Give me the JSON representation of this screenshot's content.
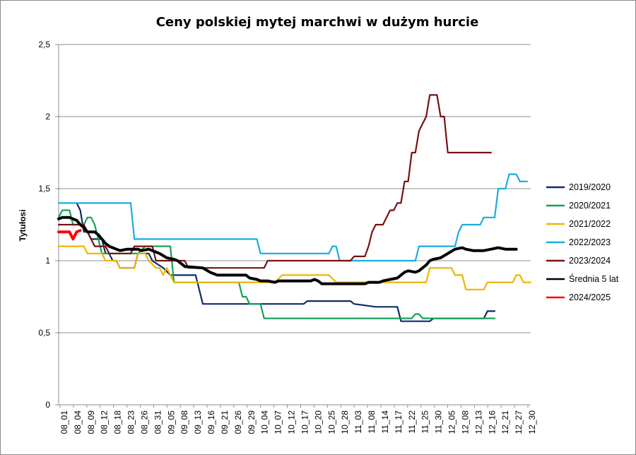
{
  "chart_data": {
    "type": "line",
    "title": "Ceny polskiej  mytej marchwi  w dużym hurcie",
    "ylabel": "Tytułosi",
    "xlabel": "",
    "ylim": [
      0,
      2.5
    ],
    "yticks": [
      0,
      0.5,
      1,
      1.5,
      2,
      2.5
    ],
    "ytick_labels": [
      "0",
      "0,5",
      "1",
      "1,5",
      "2",
      "2,5"
    ],
    "grid": "horizontal",
    "legend_position": "right",
    "x_tick_labels": [
      "08_01",
      "08_04",
      "08_09",
      "08_12",
      "08_18",
      "08_23",
      "08_26",
      "08_31",
      "09_05",
      "09_08",
      "09_13",
      "09_16",
      "09_21",
      "09_26",
      "09_29",
      "10_04",
      "10_07",
      "10_12",
      "10_17",
      "10_20",
      "10_25",
      "10_28",
      "11_03",
      "11_08",
      "11_14",
      "11_17",
      "11_22",
      "11_25",
      "11_30",
      "12_05",
      "12_08",
      "12_13",
      "12_16",
      "12_21",
      "12_27",
      "12_30"
    ],
    "x_count": 110,
    "series": [
      {
        "name": "2019/2020",
        "color": "#0d2d6b",
        "width": 2.2,
        "points": [
          [
            5,
            1.4
          ],
          [
            6,
            1.35
          ],
          [
            7,
            1.2
          ],
          [
            8,
            1.2
          ],
          [
            9,
            1.15
          ],
          [
            12,
            1.15
          ],
          [
            13,
            1.05
          ],
          [
            14,
            1.05
          ],
          [
            15,
            1.0
          ],
          [
            16,
            1.0
          ],
          [
            17,
            0.95
          ],
          [
            21,
            0.95
          ],
          [
            22,
            1.05
          ],
          [
            25,
            1.05
          ],
          [
            26,
            1.0
          ],
          [
            29,
            0.95
          ],
          [
            31,
            0.9
          ],
          [
            38,
            0.9
          ],
          [
            40,
            0.7
          ],
          [
            68,
            0.7
          ],
          [
            69,
            0.72
          ],
          [
            81,
            0.72
          ],
          [
            82,
            0.7
          ],
          [
            88,
            0.68
          ],
          [
            94,
            0.68
          ],
          [
            95,
            0.58
          ],
          [
            103,
            0.58
          ],
          [
            104,
            0.6
          ],
          [
            118,
            0.6
          ],
          [
            119,
            0.65
          ],
          [
            121,
            0.65
          ]
        ]
      },
      {
        "name": "2020/2021",
        "color": "#17a05a",
        "width": 2.2,
        "points": [
          [
            0,
            1.3
          ],
          [
            1,
            1.35
          ],
          [
            3,
            1.35
          ],
          [
            4,
            1.25
          ],
          [
            7,
            1.25
          ],
          [
            8,
            1.3
          ],
          [
            9,
            1.3
          ],
          [
            10,
            1.25
          ],
          [
            12,
            1.05
          ],
          [
            13,
            1.05
          ],
          [
            14,
            1.05
          ],
          [
            15,
            1.05
          ],
          [
            16,
            1.05
          ],
          [
            17,
            1.05
          ],
          [
            18,
            1.05
          ],
          [
            22,
            1.05
          ],
          [
            24,
            1.1
          ],
          [
            31,
            1.1
          ],
          [
            32,
            0.85
          ],
          [
            46,
            0.85
          ],
          [
            50,
            0.85
          ],
          [
            51,
            0.75
          ],
          [
            52,
            0.75
          ],
          [
            53,
            0.7
          ],
          [
            56,
            0.7
          ],
          [
            57,
            0.6
          ],
          [
            78,
            0.6
          ],
          [
            79,
            0.6
          ],
          [
            98,
            0.6
          ],
          [
            99,
            0.63
          ],
          [
            100,
            0.63
          ],
          [
            101,
            0.6
          ],
          [
            121,
            0.6
          ]
        ]
      },
      {
        "name": "2021/2022",
        "color": "#f0b400",
        "width": 2.2,
        "points": [
          [
            0,
            1.1
          ],
          [
            7,
            1.1
          ],
          [
            8,
            1.05
          ],
          [
            12,
            1.05
          ],
          [
            13,
            1.0
          ],
          [
            16,
            1.0
          ],
          [
            17,
            0.95
          ],
          [
            21,
            0.95
          ],
          [
            22,
            1.05
          ],
          [
            24,
            1.05
          ],
          [
            25,
            1.0
          ],
          [
            27,
            0.95
          ],
          [
            28,
            0.95
          ],
          [
            29,
            0.9
          ],
          [
            30,
            0.95
          ],
          [
            31,
            0.9
          ],
          [
            32,
            0.85
          ],
          [
            49,
            0.85
          ],
          [
            52,
            0.85
          ],
          [
            60,
            0.85
          ],
          [
            62,
            0.9
          ],
          [
            75,
            0.9
          ],
          [
            77,
            0.85
          ],
          [
            102,
            0.85
          ],
          [
            103,
            0.95
          ],
          [
            109,
            0.95
          ],
          [
            110,
            0.9
          ],
          [
            112,
            0.9
          ],
          [
            113,
            0.8
          ],
          [
            118,
            0.8
          ],
          [
            119,
            0.85
          ],
          [
            126,
            0.85
          ],
          [
            127,
            0.9
          ],
          [
            128,
            0.9
          ],
          [
            129,
            0.85
          ],
          [
            131,
            0.85
          ]
        ]
      },
      {
        "name": "2022/2023",
        "color": "#1aace0",
        "width": 2.2,
        "points": [
          [
            0,
            1.4
          ],
          [
            20,
            1.4
          ],
          [
            21,
            1.15
          ],
          [
            50,
            1.15
          ],
          [
            55,
            1.15
          ],
          [
            56,
            1.05
          ],
          [
            75,
            1.05
          ],
          [
            76,
            1.1
          ],
          [
            77,
            1.1
          ],
          [
            78,
            1.0
          ],
          [
            99,
            1.0
          ],
          [
            100,
            1.1
          ],
          [
            110,
            1.1
          ],
          [
            111,
            1.2
          ],
          [
            112,
            1.25
          ],
          [
            117,
            1.25
          ],
          [
            118,
            1.3
          ],
          [
            121,
            1.3
          ],
          [
            122,
            1.5
          ],
          [
            124,
            1.5
          ],
          [
            125,
            1.6
          ],
          [
            127,
            1.6
          ],
          [
            128,
            1.55
          ],
          [
            130,
            1.55
          ]
        ]
      },
      {
        "name": "2023/2024",
        "color": "#7a1010",
        "width": 2.2,
        "points": [
          [
            0,
            1.25
          ],
          [
            7,
            1.25
          ],
          [
            8,
            1.2
          ],
          [
            9,
            1.15
          ],
          [
            10,
            1.1
          ],
          [
            13,
            1.1
          ],
          [
            14,
            1.05
          ],
          [
            15,
            1.05
          ],
          [
            16,
            1.05
          ],
          [
            17,
            1.05
          ],
          [
            20,
            1.05
          ],
          [
            21,
            1.1
          ],
          [
            26,
            1.1
          ],
          [
            27,
            1.0
          ],
          [
            35,
            1.0
          ],
          [
            36,
            0.95
          ],
          [
            50,
            0.95
          ],
          [
            57,
            0.95
          ],
          [
            58,
            1.0
          ],
          [
            81,
            1.0
          ],
          [
            82,
            1.03
          ],
          [
            85,
            1.03
          ],
          [
            86,
            1.1
          ],
          [
            87,
            1.2
          ],
          [
            88,
            1.25
          ],
          [
            90,
            1.25
          ],
          [
            91,
            1.3
          ],
          [
            92,
            1.35
          ],
          [
            93,
            1.35
          ],
          [
            94,
            1.4
          ],
          [
            95,
            1.4
          ],
          [
            96,
            1.55
          ],
          [
            97,
            1.55
          ],
          [
            98,
            1.75
          ],
          [
            99,
            1.75
          ],
          [
            100,
            1.9
          ],
          [
            102,
            2.0
          ],
          [
            103,
            2.15
          ],
          [
            105,
            2.15
          ],
          [
            106,
            2.0
          ],
          [
            107,
            2.0
          ],
          [
            108,
            1.75
          ],
          [
            118,
            1.75
          ],
          [
            120,
            1.75
          ]
        ]
      },
      {
        "name": "Średnia 5 lat",
        "color": "#000000",
        "width": 4,
        "points": [
          [
            0,
            1.29
          ],
          [
            1,
            1.3
          ],
          [
            3,
            1.3
          ],
          [
            5,
            1.28
          ],
          [
            6,
            1.25
          ],
          [
            7,
            1.23
          ],
          [
            8,
            1.2
          ],
          [
            10,
            1.2
          ],
          [
            11,
            1.18
          ],
          [
            12,
            1.15
          ],
          [
            13,
            1.12
          ],
          [
            14,
            1.1
          ],
          [
            15,
            1.09
          ],
          [
            17,
            1.07
          ],
          [
            19,
            1.08
          ],
          [
            22,
            1.08
          ],
          [
            23,
            1.07
          ],
          [
            25,
            1.08
          ],
          [
            28,
            1.05
          ],
          [
            30,
            1.02
          ],
          [
            32,
            1.01
          ],
          [
            33,
            1.0
          ],
          [
            34,
            0.98
          ],
          [
            35,
            0.96
          ],
          [
            40,
            0.95
          ],
          [
            42,
            0.92
          ],
          [
            43,
            0.91
          ],
          [
            44,
            0.9
          ],
          [
            52,
            0.9
          ],
          [
            53,
            0.88
          ],
          [
            55,
            0.87
          ],
          [
            56,
            0.86
          ],
          [
            58,
            0.86
          ],
          [
            60,
            0.85
          ],
          [
            61,
            0.86
          ],
          [
            70,
            0.86
          ],
          [
            71,
            0.87
          ],
          [
            72,
            0.86
          ],
          [
            73,
            0.84
          ],
          [
            75,
            0.84
          ],
          [
            85,
            0.84
          ],
          [
            86,
            0.85
          ],
          [
            89,
            0.85
          ],
          [
            90,
            0.86
          ],
          [
            92,
            0.87
          ],
          [
            94,
            0.88
          ],
          [
            95,
            0.9
          ],
          [
            96,
            0.92
          ],
          [
            97,
            0.93
          ],
          [
            99,
            0.92
          ],
          [
            100,
            0.93
          ],
          [
            101,
            0.95
          ],
          [
            102,
            0.97
          ],
          [
            103,
            1.0
          ],
          [
            104,
            1.01
          ],
          [
            106,
            1.02
          ],
          [
            108,
            1.05
          ],
          [
            110,
            1.08
          ],
          [
            112,
            1.09
          ],
          [
            113,
            1.08
          ],
          [
            115,
            1.07
          ],
          [
            118,
            1.07
          ],
          [
            120,
            1.08
          ],
          [
            122,
            1.09
          ],
          [
            124,
            1.08
          ],
          [
            126,
            1.08
          ],
          [
            127,
            1.08
          ]
        ]
      },
      {
        "name": "2024/2025",
        "color": "#ff0000",
        "width": 4,
        "points": [
          [
            0,
            1.2
          ],
          [
            3,
            1.2
          ],
          [
            4,
            1.15
          ],
          [
            5,
            1.2
          ],
          [
            6,
            1.21
          ]
        ]
      }
    ]
  }
}
